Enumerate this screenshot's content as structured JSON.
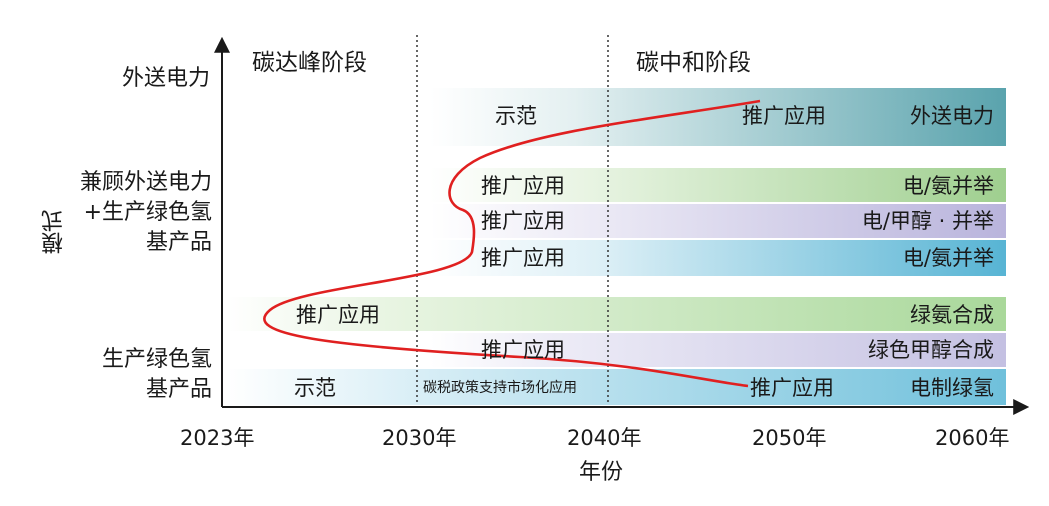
{
  "axis": {
    "y_title": "模式",
    "x_title": "年份",
    "x_ticks": [
      "2023年",
      "2030年",
      "2040年",
      "2050年",
      "2060年"
    ],
    "y_categories": {
      "top": "外送电力",
      "middle": "兼顾外送电力+生产绿色氢基产品",
      "bottom": "生产绿色氢基产品"
    }
  },
  "phases": {
    "peak": "碳达峰阶段",
    "neutral": "碳中和阶段"
  },
  "bands": {
    "export_power": {
      "left": "示范",
      "mid": "推广应用",
      "right": "外送电力",
      "color": "#5aa3ad"
    },
    "power_ammonia_1": {
      "mid": "推广应用",
      "right": "电/氨并举",
      "color": "#9fcf8f"
    },
    "power_methanol": {
      "mid": "推广应用",
      "right": "电/甲醇 · 并举",
      "color": "#b9b4dc"
    },
    "power_ammonia_2": {
      "mid": "推广应用",
      "right": "电/氨并举",
      "color": "#57b4d4"
    },
    "green_ammonia": {
      "left": "推广应用",
      "right": "绿氨合成",
      "color": "#a9d89a"
    },
    "green_methanol": {
      "mid": "推广应用",
      "right": "绿色甲醇合成",
      "color": "#c4c0e2"
    },
    "green_hydrogen": {
      "left": "示范",
      "mid": "碳税政策支持市场化应用",
      "right_mid": "推广应用",
      "right": "电制绿氢",
      "color": "#6fc0db"
    }
  },
  "colors": {
    "curve": "#e02020",
    "axis": "#1a1a1a"
  }
}
